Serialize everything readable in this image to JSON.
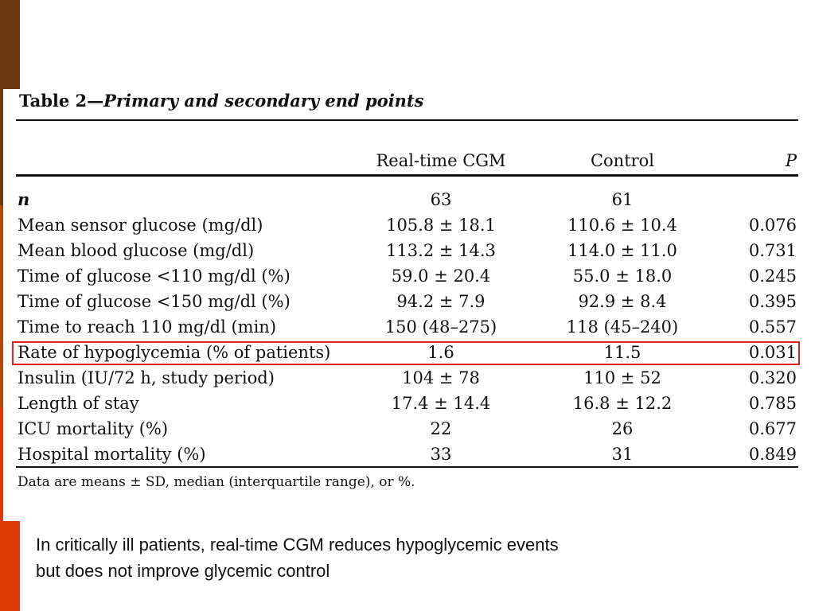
{
  "colors": {
    "bar_top": "#6b3a0e",
    "bar_middle": "#b04a0a",
    "bar_bottom": "#d93a04",
    "highlight": "#e02020"
  },
  "table": {
    "title_prefix": "Table 2—",
    "title_main": "Primary and secondary end points",
    "headers": {
      "cgm": "Real-time CGM",
      "control": "Control",
      "p": "P"
    },
    "rows": [
      {
        "label": "n",
        "cgm": "63",
        "control": "61",
        "p": ""
      },
      {
        "label": "Mean sensor glucose (mg/dl)",
        "cgm": "105.8 ± 18.1",
        "control": "110.6 ± 10.4",
        "p": "0.076"
      },
      {
        "label": "Mean blood glucose (mg/dl)",
        "cgm": "113.2 ± 14.3",
        "control": "114.0 ± 11.0",
        "p": "0.731"
      },
      {
        "label": "Time of glucose <110 mg/dl (%)",
        "cgm": "59.0 ± 20.4",
        "control": "55.0 ± 18.0",
        "p": "0.245"
      },
      {
        "label": "Time of glucose <150 mg/dl (%)",
        "cgm": "94.2 ± 7.9",
        "control": "92.9 ± 8.4",
        "p": "0.395"
      },
      {
        "label": "Time to reach 110 mg/dl (min)",
        "cgm": "150 (48–275)",
        "control": "118 (45–240)",
        "p": "0.557"
      },
      {
        "label": "Rate of hypoglycemia (% of patients)",
        "cgm": "1.6",
        "control": "11.5",
        "p": "0.031"
      },
      {
        "label": "Insulin (IU/72 h, study period)",
        "cgm": "104 ± 78",
        "control": "110 ± 52",
        "p": "0.320"
      },
      {
        "label": "Length of stay",
        "cgm": "17.4 ± 14.4",
        "control": "16.8 ± 12.2",
        "p": "0.785"
      },
      {
        "label": "ICU mortality (%)",
        "cgm": "22",
        "control": "26",
        "p": "0.677"
      },
      {
        "label": "Hospital mortality (%)",
        "cgm": "33",
        "control": "31",
        "p": "0.849"
      }
    ],
    "footnote": "Data are means ± SD, median (interquartile range), or %."
  },
  "caption": {
    "line1": "In critically ill patients, real-time CGM reduces hypoglycemic events",
    "line2": "but does not improve glycemic control"
  }
}
